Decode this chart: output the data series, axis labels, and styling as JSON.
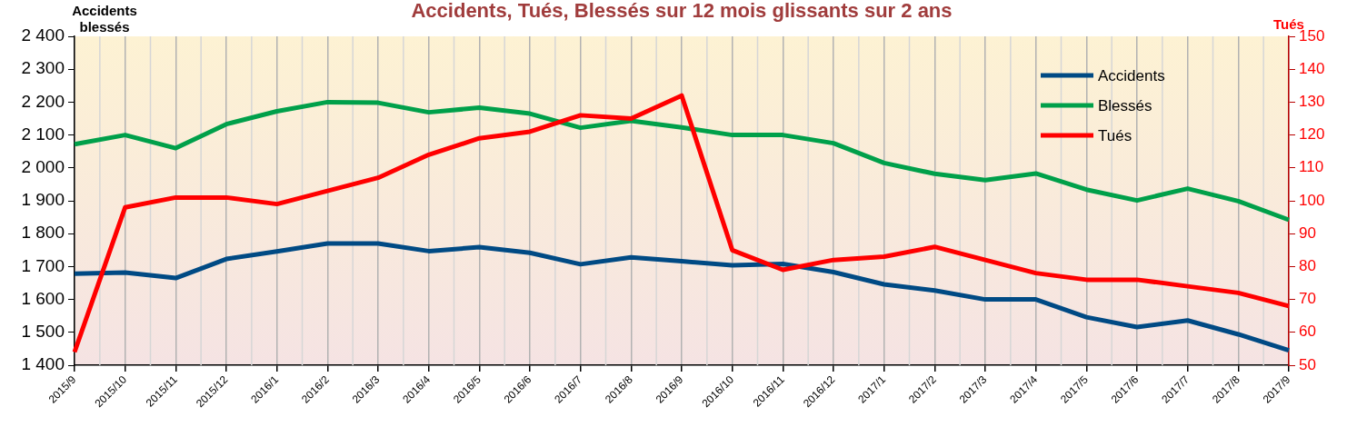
{
  "chart_data": {
    "type": "line",
    "title": "Accidents, Tués, Blessés sur 12 mois glissants sur 2 ans",
    "ylabel": "Accidents blessés",
    "y2label": "Tués",
    "categories": [
      "2015/9",
      "2015/10",
      "2015/11",
      "2015/12",
      "2016/1",
      "2016/2",
      "2016/3",
      "2016/4",
      "2016/5",
      "2016/6",
      "2016/7",
      "2016/8",
      "2016/9",
      "2016/10",
      "2016/11",
      "2016/12",
      "2017/1",
      "2017/2",
      "2017/3",
      "2017/4",
      "2017/5",
      "2017/6",
      "2017/7",
      "2017/8",
      "2017/9"
    ],
    "series": [
      {
        "name": "Accidents",
        "color": "#004a84",
        "values": [
          1678,
          1682,
          1665,
          1723,
          1746,
          1770,
          1770,
          1747,
          1759,
          1742,
          1707,
          1728,
          1716,
          1704,
          1708,
          1683,
          1646,
          1627,
          1600,
          1600,
          1546,
          1516,
          1536,
          1494,
          1445
        ]
      },
      {
        "name": "Blessés",
        "color": "#00a04a",
        "values": [
          2072,
          2100,
          2060,
          2133,
          2172,
          2200,
          2198,
          2169,
          2183,
          2165,
          2122,
          2143,
          2123,
          2100,
          2100,
          2075,
          2015,
          1982,
          1963,
          1983,
          1934,
          1901,
          1937,
          1899,
          1842
        ]
      },
      {
        "name": "Tués",
        "color": "#ff0000",
        "axis": "y2",
        "values": [
          54,
          98,
          101,
          101,
          99,
          103,
          107,
          114,
          119,
          121,
          126,
          125,
          132,
          85,
          79,
          82,
          83,
          86,
          82,
          78,
          76,
          76,
          74,
          72,
          68
        ]
      }
    ],
    "ylim": [
      1400,
      2400
    ],
    "yticks": [
      {
        "value": 1400,
        "label": "1 400"
      },
      {
        "value": 1500,
        "label": "1 500"
      },
      {
        "value": 1600,
        "label": "1 600"
      },
      {
        "value": 1700,
        "label": "1 700"
      },
      {
        "value": 1800,
        "label": "1 800"
      },
      {
        "value": 1900,
        "label": "1 900"
      },
      {
        "value": 2000,
        "label": "2 000"
      },
      {
        "value": 2100,
        "label": "2 100"
      },
      {
        "value": 2200,
        "label": "2 200"
      },
      {
        "value": 2300,
        "label": "2 300"
      },
      {
        "value": 2400,
        "label": "2 400"
      }
    ],
    "y2lim": [
      50,
      150
    ],
    "y2ticks": [
      50,
      60,
      70,
      80,
      90,
      100,
      110,
      120,
      130,
      140,
      150
    ],
    "grid": "x",
    "legend": "top right"
  }
}
